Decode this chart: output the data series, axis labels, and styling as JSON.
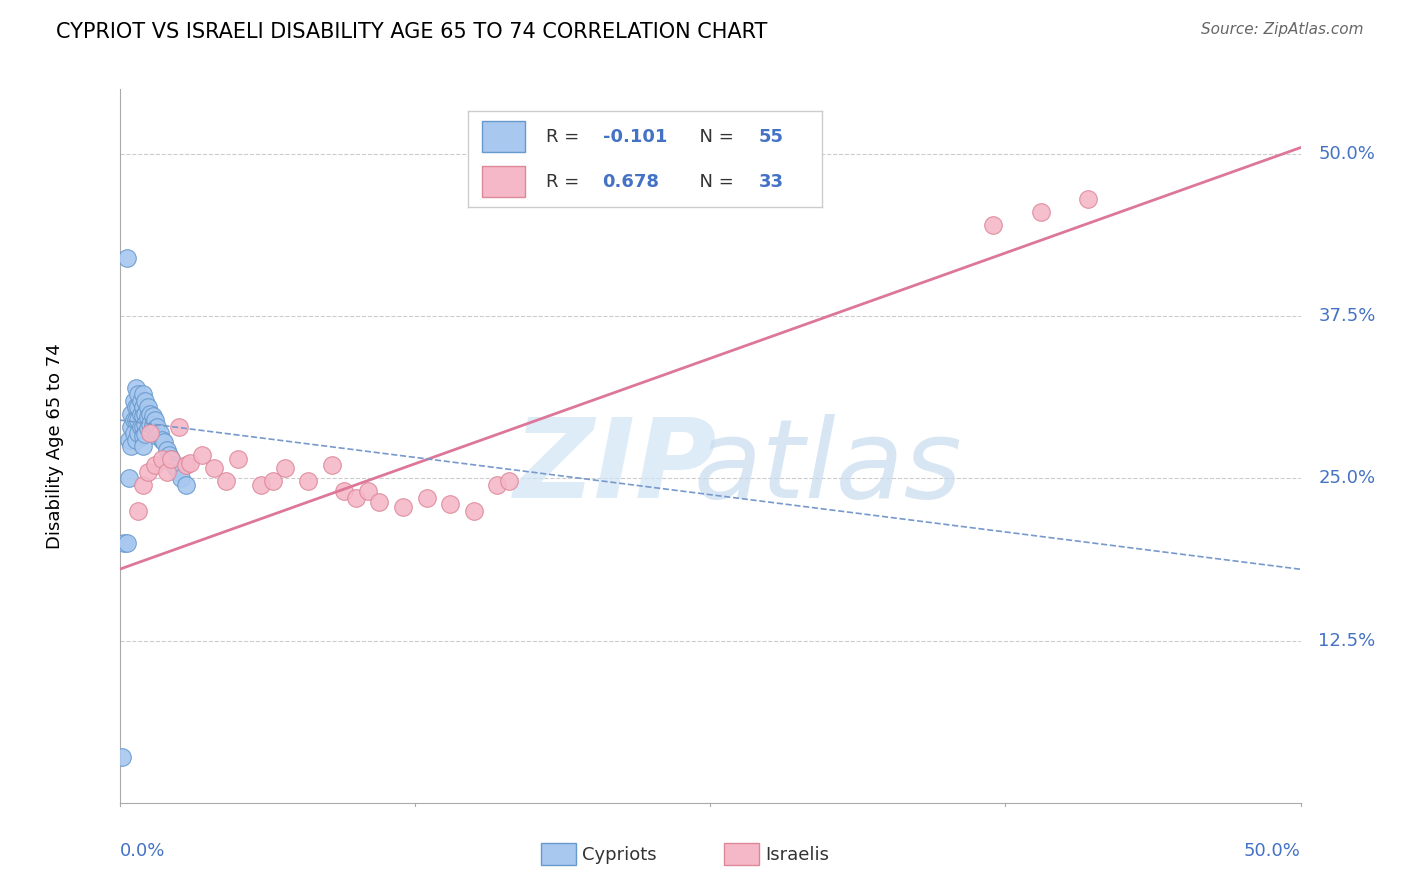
{
  "title": "CYPRIOT VS ISRAELI DISABILITY AGE 65 TO 74 CORRELATION CHART",
  "source": "Source: ZipAtlas.com",
  "ylabel": "Disability Age 65 to 74",
  "xmin": 0.0,
  "xmax": 0.5,
  "ymin": 0.0,
  "ymax": 0.55,
  "cypriot_R": -0.101,
  "cypriot_N": 55,
  "israeli_R": 0.678,
  "israeli_N": 33,
  "cypriot_color": "#A8C8F0",
  "cypriot_edge": "#6699CC",
  "israeli_color": "#F5B8C8",
  "israeli_edge": "#DD8899",
  "trend_cypriot_color": "#7799CC",
  "trend_israeli_color": "#DD7799",
  "grid_color": "#CCCCCC",
  "ytick_vals": [
    0.125,
    0.25,
    0.375,
    0.5
  ],
  "ytick_labels": [
    "12.5%",
    "25.0%",
    "37.5%",
    "50.0%"
  ],
  "cypriot_x": [
    0.001,
    0.002,
    0.003,
    0.004,
    0.004,
    0.005,
    0.005,
    0.005,
    0.006,
    0.006,
    0.006,
    0.007,
    0.007,
    0.007,
    0.007,
    0.008,
    0.008,
    0.008,
    0.008,
    0.009,
    0.009,
    0.009,
    0.01,
    0.01,
    0.01,
    0.01,
    0.01,
    0.01,
    0.011,
    0.011,
    0.011,
    0.011,
    0.012,
    0.012,
    0.012,
    0.013,
    0.013,
    0.014,
    0.014,
    0.015,
    0.015,
    0.016,
    0.016,
    0.017,
    0.018,
    0.019,
    0.02,
    0.021,
    0.022,
    0.023,
    0.024,
    0.025,
    0.026,
    0.028,
    0.003
  ],
  "cypriot_y": [
    0.035,
    0.2,
    0.2,
    0.28,
    0.25,
    0.3,
    0.29,
    0.275,
    0.31,
    0.295,
    0.285,
    0.32,
    0.305,
    0.295,
    0.28,
    0.315,
    0.305,
    0.295,
    0.285,
    0.31,
    0.3,
    0.29,
    0.315,
    0.305,
    0.298,
    0.29,
    0.283,
    0.275,
    0.31,
    0.3,
    0.292,
    0.284,
    0.305,
    0.297,
    0.289,
    0.3,
    0.292,
    0.298,
    0.291,
    0.295,
    0.288,
    0.29,
    0.283,
    0.285,
    0.28,
    0.278,
    0.272,
    0.268,
    0.265,
    0.26,
    0.258,
    0.255,
    0.25,
    0.245,
    0.42
  ],
  "israeli_x": [
    0.008,
    0.01,
    0.012,
    0.013,
    0.015,
    0.018,
    0.02,
    0.022,
    0.025,
    0.028,
    0.03,
    0.035,
    0.04,
    0.045,
    0.05,
    0.06,
    0.065,
    0.07,
    0.08,
    0.09,
    0.095,
    0.1,
    0.105,
    0.11,
    0.12,
    0.13,
    0.14,
    0.15,
    0.16,
    0.165,
    0.37,
    0.39,
    0.41
  ],
  "israeli_y": [
    0.225,
    0.245,
    0.255,
    0.285,
    0.26,
    0.265,
    0.255,
    0.265,
    0.29,
    0.26,
    0.262,
    0.268,
    0.258,
    0.248,
    0.265,
    0.245,
    0.248,
    0.258,
    0.248,
    0.26,
    0.24,
    0.235,
    0.24,
    0.232,
    0.228,
    0.235,
    0.23,
    0.225,
    0.245,
    0.248,
    0.445,
    0.455,
    0.465
  ],
  "israeli_trendline_x": [
    0.0,
    0.5
  ],
  "israeli_trendline_y": [
    0.18,
    0.505
  ],
  "cypriot_trendline_x": [
    0.0,
    0.5
  ],
  "cypriot_trendline_y": [
    0.295,
    0.18
  ]
}
